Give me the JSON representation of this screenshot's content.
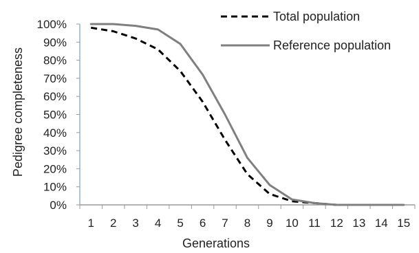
{
  "chart_data": {
    "type": "line",
    "x": [
      1,
      2,
      3,
      4,
      5,
      6,
      7,
      8,
      9,
      10,
      11,
      12,
      13,
      14,
      15
    ],
    "series": [
      {
        "name": "Total population",
        "values": [
          98,
          96,
          92,
          86,
          74,
          57,
          36,
          17,
          6,
          2,
          1,
          0,
          0,
          0,
          0
        ],
        "color": "#000000",
        "style": "dashed"
      },
      {
        "name": "Reference population",
        "values": [
          100,
          100,
          99,
          97,
          89,
          72,
          50,
          26,
          11,
          3,
          1,
          0,
          0,
          0,
          0
        ],
        "color": "#7f7f7f",
        "style": "solid"
      }
    ],
    "xlabel": "Generations",
    "ylabel": "Pedigree completeness",
    "ylim": [
      0,
      100
    ],
    "yticks": [
      "0%",
      "10%",
      "20%",
      "30%",
      "40%",
      "50%",
      "60%",
      "70%",
      "80%",
      "90%",
      "100%"
    ],
    "xticks": [
      "1",
      "2",
      "3",
      "4",
      "5",
      "6",
      "7",
      "8",
      "9",
      "10",
      "11",
      "12",
      "13",
      "14",
      "15"
    ],
    "legend_position": "top-right",
    "grid": false,
    "axis_color": "#9a9a9a"
  }
}
